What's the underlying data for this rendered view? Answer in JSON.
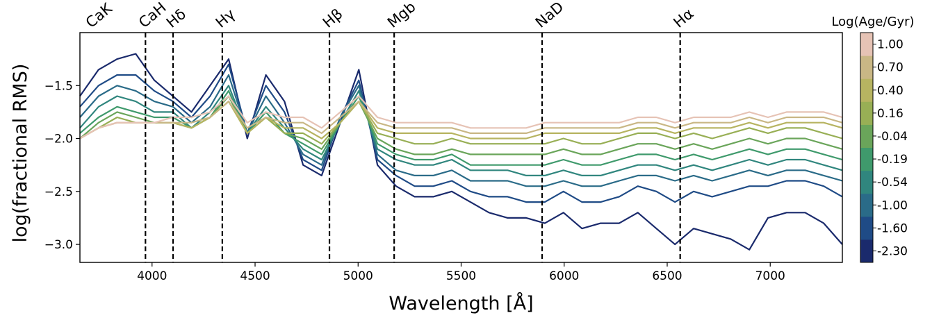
{
  "chart_data": {
    "type": "line",
    "xlabel": "Wavelength [Å]",
    "ylabel": "log(fractional RMS)",
    "xlim": [
      3650,
      7350
    ],
    "ylim": [
      -3.17,
      -1.0
    ],
    "xticks": [
      4000,
      4500,
      5000,
      5500,
      6000,
      6500,
      7000
    ],
    "yticks": [
      -1.5,
      -2.0,
      -2.5,
      -3.0
    ],
    "ytick_labels": [
      "−1.5",
      "−2.0",
      "−2.5",
      "−3.0"
    ],
    "grid": false,
    "spectral_lines": [
      {
        "label": "CaK",
        "x": 3934
      },
      {
        "label": "CaH",
        "x": 3968
      },
      {
        "label": "Hδ",
        "x": 4102
      },
      {
        "label": "Hγ",
        "x": 4341
      },
      {
        "label": "Hβ",
        "x": 4861
      },
      {
        "label": "Mgb",
        "x": 5175
      },
      {
        "label": "NaD",
        "x": 5893
      },
      {
        "label": "Hα",
        "x": 6563
      }
    ],
    "colorbar": {
      "title": "Log(Age/Gyr)",
      "ticks": [
        "-2.30",
        "-1.60",
        "-1.00",
        "-0.54",
        "-0.19",
        "-0.04",
        "0.16",
        "0.40",
        "0.70",
        "1.00"
      ],
      "colors": [
        "#1a2a6c",
        "#1f4b86",
        "#2a6b88",
        "#30867e",
        "#3f9a6c",
        "#6aa55a",
        "#98af55",
        "#b7b461",
        "#c9b785",
        "#e6c3b5"
      ]
    },
    "series": [
      {
        "color": "#1a2a6c",
        "y": [
          -1.6,
          -1.35,
          -1.25,
          -1.2,
          -1.45,
          -1.6,
          -1.75,
          -1.5,
          -1.25,
          -2.0,
          -1.4,
          -1.65,
          -2.25,
          -2.35,
          -1.85,
          -1.35,
          -2.25,
          -2.45,
          -2.55,
          -2.55,
          -2.5,
          -2.6,
          -2.7,
          -2.75,
          -2.75,
          -2.8,
          -2.7,
          -2.85,
          -2.8,
          -2.8,
          -2.7,
          -2.85,
          -3.0,
          -2.85,
          -2.9,
          -2.95,
          -3.05,
          -2.75,
          -2.7,
          -2.7,
          -2.8,
          -3.0
        ]
      },
      {
        "color": "#1f4b86",
        "y": [
          -1.7,
          -1.5,
          -1.4,
          -1.4,
          -1.55,
          -1.65,
          -1.8,
          -1.6,
          -1.3,
          -1.95,
          -1.5,
          -1.75,
          -2.2,
          -2.3,
          -1.8,
          -1.45,
          -2.2,
          -2.35,
          -2.45,
          -2.45,
          -2.4,
          -2.5,
          -2.55,
          -2.55,
          -2.6,
          -2.6,
          -2.5,
          -2.6,
          -2.6,
          -2.55,
          -2.45,
          -2.5,
          -2.6,
          -2.5,
          -2.55,
          -2.5,
          -2.45,
          -2.45,
          -2.4,
          -2.4,
          -2.45,
          -2.55
        ]
      },
      {
        "color": "#2a6b88",
        "y": [
          -1.8,
          -1.6,
          -1.5,
          -1.55,
          -1.65,
          -1.7,
          -1.85,
          -1.7,
          -1.4,
          -1.95,
          -1.6,
          -1.85,
          -2.15,
          -2.25,
          -1.8,
          -1.5,
          -2.15,
          -2.3,
          -2.35,
          -2.35,
          -2.3,
          -2.4,
          -2.4,
          -2.4,
          -2.45,
          -2.45,
          -2.4,
          -2.45,
          -2.45,
          -2.4,
          -2.35,
          -2.35,
          -2.4,
          -2.35,
          -2.4,
          -2.35,
          -2.3,
          -2.35,
          -2.3,
          -2.3,
          -2.35,
          -2.4
        ]
      },
      {
        "color": "#30867e",
        "y": [
          -1.9,
          -1.7,
          -1.6,
          -1.65,
          -1.75,
          -1.75,
          -1.9,
          -1.75,
          -1.5,
          -1.95,
          -1.7,
          -1.9,
          -2.1,
          -2.2,
          -1.85,
          -1.55,
          -2.1,
          -2.2,
          -2.25,
          -2.25,
          -2.2,
          -2.3,
          -2.3,
          -2.3,
          -2.35,
          -2.35,
          -2.3,
          -2.35,
          -2.35,
          -2.3,
          -2.25,
          -2.25,
          -2.3,
          -2.25,
          -2.3,
          -2.25,
          -2.2,
          -2.25,
          -2.2,
          -2.2,
          -2.25,
          -2.3
        ]
      },
      {
        "color": "#3f9a6c",
        "y": [
          -1.95,
          -1.8,
          -1.7,
          -1.75,
          -1.8,
          -1.8,
          -1.9,
          -1.8,
          -1.55,
          -1.95,
          -1.75,
          -1.95,
          -2.05,
          -2.15,
          -1.85,
          -1.6,
          -2.05,
          -2.15,
          -2.2,
          -2.2,
          -2.15,
          -2.25,
          -2.25,
          -2.25,
          -2.25,
          -2.25,
          -2.2,
          -2.25,
          -2.25,
          -2.2,
          -2.15,
          -2.15,
          -2.2,
          -2.15,
          -2.2,
          -2.15,
          -2.1,
          -2.15,
          -2.1,
          -2.1,
          -2.15,
          -2.2
        ]
      },
      {
        "color": "#6aa55a",
        "y": [
          -2.0,
          -1.85,
          -1.75,
          -1.8,
          -1.85,
          -1.85,
          -1.9,
          -1.8,
          -1.6,
          -1.95,
          -1.8,
          -1.95,
          -2.0,
          -2.1,
          -1.85,
          -1.65,
          -2.0,
          -2.1,
          -2.15,
          -2.15,
          -2.1,
          -2.15,
          -2.15,
          -2.15,
          -2.15,
          -2.15,
          -2.1,
          -2.15,
          -2.15,
          -2.1,
          -2.05,
          -2.05,
          -2.1,
          -2.05,
          -2.1,
          -2.05,
          -2.0,
          -2.05,
          -2.0,
          -2.0,
          -2.05,
          -2.1
        ]
      },
      {
        "color": "#98af55",
        "y": [
          -2.0,
          -1.9,
          -1.8,
          -1.85,
          -1.85,
          -1.85,
          -1.9,
          -1.8,
          -1.65,
          -1.95,
          -1.8,
          -1.95,
          -1.95,
          -2.05,
          -1.85,
          -1.65,
          -1.95,
          -2.0,
          -2.05,
          -2.05,
          -2.0,
          -2.05,
          -2.05,
          -2.05,
          -2.05,
          -2.05,
          -2.0,
          -2.05,
          -2.05,
          -2.0,
          -1.95,
          -1.95,
          -2.0,
          -1.95,
          -2.0,
          -1.95,
          -1.9,
          -1.95,
          -1.9,
          -1.9,
          -1.95,
          -2.0
        ]
      },
      {
        "color": "#b7b461",
        "y": [
          -2.0,
          -1.9,
          -1.85,
          -1.85,
          -1.85,
          -1.85,
          -1.9,
          -1.8,
          -1.65,
          -1.95,
          -1.8,
          -1.9,
          -1.9,
          -2.0,
          -1.85,
          -1.65,
          -1.9,
          -1.95,
          -1.95,
          -1.95,
          -1.95,
          -2.0,
          -2.0,
          -2.0,
          -2.0,
          -1.95,
          -1.95,
          -1.95,
          -1.95,
          -1.95,
          -1.9,
          -1.9,
          -1.95,
          -1.9,
          -1.9,
          -1.9,
          -1.85,
          -1.9,
          -1.85,
          -1.85,
          -1.85,
          -1.9
        ]
      },
      {
        "color": "#c9b785",
        "y": [
          -2.0,
          -1.9,
          -1.85,
          -1.85,
          -1.85,
          -1.85,
          -1.85,
          -1.8,
          -1.65,
          -1.9,
          -1.8,
          -1.85,
          -1.85,
          -1.95,
          -1.8,
          -1.65,
          -1.85,
          -1.9,
          -1.9,
          -1.9,
          -1.9,
          -1.95,
          -1.95,
          -1.95,
          -1.95,
          -1.9,
          -1.9,
          -1.9,
          -1.9,
          -1.9,
          -1.85,
          -1.85,
          -1.9,
          -1.85,
          -1.85,
          -1.85,
          -1.8,
          -1.85,
          -1.8,
          -1.8,
          -1.8,
          -1.85
        ]
      },
      {
        "color": "#e6c3b5",
        "y": [
          -2.0,
          -1.9,
          -1.85,
          -1.85,
          -1.85,
          -1.8,
          -1.8,
          -1.75,
          -1.6,
          -1.85,
          -1.75,
          -1.8,
          -1.8,
          -1.9,
          -1.75,
          -1.6,
          -1.8,
          -1.85,
          -1.85,
          -1.85,
          -1.85,
          -1.9,
          -1.9,
          -1.9,
          -1.9,
          -1.85,
          -1.85,
          -1.85,
          -1.85,
          -1.85,
          -1.8,
          -1.8,
          -1.85,
          -1.8,
          -1.8,
          -1.8,
          -1.75,
          -1.8,
          -1.75,
          -1.75,
          -1.75,
          -1.8
        ]
      }
    ]
  }
}
